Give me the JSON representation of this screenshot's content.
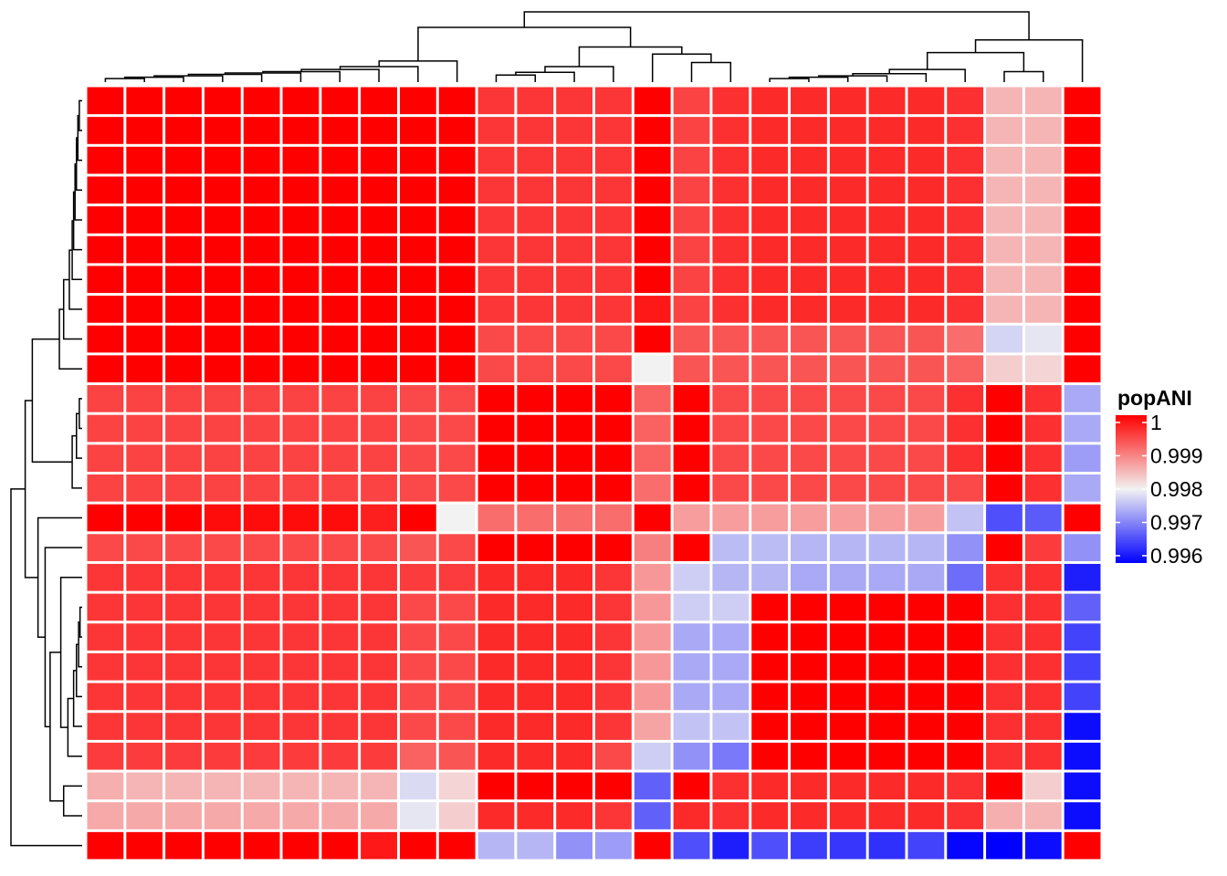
{
  "chart_data": {
    "type": "heatmap",
    "title": "",
    "legend": {
      "title": "popANI",
      "position": "right",
      "range": [
        0.996,
        1.0
      ],
      "ticks": [
        1,
        0.999,
        0.998,
        0.997,
        0.996
      ],
      "tick_labels": [
        "1",
        "0.999",
        "0.998",
        "0.997",
        "0.996"
      ],
      "colors": {
        "low": "#0000ff",
        "mid": "#f2f2f2",
        "high": "#ff0000",
        "mid_value": 0.998
      }
    },
    "row_dendrogram": true,
    "column_dendrogram": true,
    "n_rows": 26,
    "n_cols": 26,
    "values": [
      [
        1.0,
        1.0,
        1.0,
        1.0,
        1.0,
        1.0,
        1.0,
        1.0,
        1.0,
        1.0,
        0.99955,
        0.99955,
        0.99955,
        0.99955,
        1.0,
        0.99945,
        0.9996,
        0.99965,
        0.99965,
        0.99965,
        0.99965,
        0.99965,
        0.9996,
        0.9985,
        0.9985,
        1.0
      ],
      [
        1.0,
        1.0,
        1.0,
        1.0,
        1.0,
        1.0,
        1.0,
        1.0,
        1.0,
        1.0,
        0.99955,
        0.99955,
        0.99955,
        0.99955,
        1.0,
        0.99945,
        0.9996,
        0.99965,
        0.99965,
        0.99965,
        0.99965,
        0.99965,
        0.9996,
        0.9985,
        0.9985,
        1.0
      ],
      [
        1.0,
        1.0,
        1.0,
        1.0,
        1.0,
        1.0,
        1.0,
        1.0,
        1.0,
        1.0,
        0.99955,
        0.99955,
        0.99955,
        0.99955,
        1.0,
        0.99945,
        0.9996,
        0.99965,
        0.99965,
        0.99965,
        0.99965,
        0.99965,
        0.9996,
        0.9985,
        0.9985,
        1.0
      ],
      [
        1.0,
        1.0,
        1.0,
        1.0,
        1.0,
        1.0,
        1.0,
        1.0,
        1.0,
        1.0,
        0.99955,
        0.99955,
        0.99955,
        0.99955,
        1.0,
        0.99945,
        0.9996,
        0.99965,
        0.99965,
        0.99965,
        0.99965,
        0.99965,
        0.9996,
        0.9985,
        0.9985,
        1.0
      ],
      [
        1.0,
        1.0,
        1.0,
        1.0,
        1.0,
        1.0,
        1.0,
        1.0,
        1.0,
        1.0,
        0.99955,
        0.99955,
        0.99955,
        0.99955,
        1.0,
        0.99945,
        0.9996,
        0.99965,
        0.99965,
        0.99965,
        0.99965,
        0.99965,
        0.9996,
        0.9985,
        0.9985,
        1.0
      ],
      [
        1.0,
        1.0,
        1.0,
        1.0,
        1.0,
        1.0,
        1.0,
        1.0,
        1.0,
        1.0,
        0.99955,
        0.99955,
        0.99955,
        0.99955,
        1.0,
        0.99945,
        0.9996,
        0.99965,
        0.99965,
        0.99965,
        0.99965,
        0.99965,
        0.9996,
        0.9985,
        0.9985,
        1.0
      ],
      [
        1.0,
        1.0,
        1.0,
        1.0,
        1.0,
        1.0,
        1.0,
        1.0,
        1.0,
        1.0,
        0.99955,
        0.99955,
        0.99955,
        0.99955,
        1.0,
        0.99945,
        0.9996,
        0.99965,
        0.99965,
        0.99965,
        0.99965,
        0.99965,
        0.9996,
        0.9985,
        0.9985,
        1.0
      ],
      [
        1.0,
        1.0,
        1.0,
        1.0,
        1.0,
        1.0,
        1.0,
        1.0,
        1.0,
        1.0,
        0.99955,
        0.99955,
        0.99955,
        0.99955,
        0.9998,
        0.99945,
        0.9996,
        0.99965,
        0.99965,
        0.99965,
        0.99965,
        0.99965,
        0.9996,
        0.9985,
        0.9985,
        1.0
      ],
      [
        1.0,
        1.0,
        1.0,
        1.0,
        1.0,
        1.0,
        1.0,
        1.0,
        1.0,
        1.0,
        0.9994,
        0.9994,
        0.9994,
        0.9994,
        1.0,
        0.9993,
        0.9993,
        0.9993,
        0.9993,
        0.9993,
        0.9993,
        0.9993,
        0.9991,
        0.99775,
        0.9979,
        1.0
      ],
      [
        1.0,
        1.0,
        1.0,
        1.0,
        1.0,
        1.0,
        1.0,
        1.0,
        1.0,
        1.0,
        0.9994,
        0.9994,
        0.9994,
        0.9994,
        0.998,
        0.9993,
        0.9993,
        0.9993,
        0.9993,
        0.9993,
        0.9993,
        0.9993,
        0.9992,
        0.9983,
        0.99825,
        1.0
      ],
      [
        0.99945,
        0.99945,
        0.99945,
        0.99945,
        0.99945,
        0.99945,
        0.99945,
        0.99945,
        0.9994,
        0.9994,
        1.0,
        1.0,
        1.0,
        1.0,
        0.9992,
        1.0,
        0.9994,
        0.9994,
        0.9994,
        0.9994,
        0.9994,
        0.9994,
        0.9996,
        1.0,
        0.9996,
        0.9974
      ],
      [
        0.99945,
        0.99945,
        0.99945,
        0.99945,
        0.99945,
        0.99945,
        0.99945,
        0.99945,
        0.9994,
        0.9994,
        1.0,
        1.0,
        1.0,
        1.0,
        0.9992,
        1.0,
        0.9994,
        0.9994,
        0.9994,
        0.9994,
        0.9994,
        0.9994,
        0.9996,
        1.0,
        0.9996,
        0.9974
      ],
      [
        0.99945,
        0.99945,
        0.99945,
        0.99945,
        0.99945,
        0.99945,
        0.99945,
        0.99945,
        0.9994,
        0.9994,
        1.0,
        1.0,
        1.0,
        1.0,
        0.9992,
        1.0,
        0.9994,
        0.9994,
        0.9994,
        0.9994,
        0.9994,
        0.9994,
        0.9996,
        1.0,
        0.9996,
        0.9973
      ],
      [
        0.99945,
        0.99945,
        0.99945,
        0.99945,
        0.99945,
        0.99945,
        0.99945,
        0.99945,
        0.9994,
        0.9994,
        1.0,
        1.0,
        1.0,
        1.0,
        0.9991,
        1.0,
        0.9994,
        0.9994,
        0.9994,
        0.9994,
        0.9994,
        0.9994,
        0.9994,
        1.0,
        0.9996,
        0.9974
      ],
      [
        1.0,
        1.0,
        1.0,
        0.9999,
        0.9999,
        0.9999,
        0.9999,
        0.99975,
        1.0,
        0.998,
        0.9991,
        0.9991,
        0.9991,
        0.9991,
        1.0,
        0.9987,
        0.9987,
        0.9987,
        0.9987,
        0.9987,
        0.9987,
        0.9987,
        0.9976,
        0.99665,
        0.99675,
        1.0
      ],
      [
        0.9994,
        0.9994,
        0.9994,
        0.9994,
        0.9994,
        0.9994,
        0.9994,
        0.9994,
        0.9993,
        0.9994,
        1.0,
        1.0,
        1.0,
        1.0,
        0.99895,
        1.0,
        0.99755,
        0.99755,
        0.9975,
        0.9975,
        0.9975,
        0.9975,
        0.9972,
        1.0,
        0.9995,
        0.9972
      ],
      [
        0.99955,
        0.99955,
        0.99955,
        0.99955,
        0.99955,
        0.99955,
        0.99955,
        0.99955,
        0.9995,
        0.9995,
        0.99965,
        0.99965,
        0.99965,
        0.99955,
        0.99875,
        0.9977,
        0.9975,
        0.9975,
        0.9974,
        0.9974,
        0.9974,
        0.9974,
        0.9969,
        0.9996,
        0.9996,
        0.99625
      ],
      [
        0.99955,
        0.99955,
        0.99955,
        0.99955,
        0.99955,
        0.99955,
        0.99955,
        0.99955,
        0.9994,
        0.9994,
        0.99965,
        0.99965,
        0.99965,
        0.99955,
        0.99875,
        0.9977,
        0.9977,
        1.0,
        1.0,
        1.0,
        1.0,
        1.0,
        1.0,
        0.9996,
        0.9996,
        0.9968
      ],
      [
        0.99955,
        0.99955,
        0.99955,
        0.99955,
        0.99955,
        0.99955,
        0.99955,
        0.99955,
        0.9994,
        0.9994,
        0.99965,
        0.99965,
        0.99965,
        0.99955,
        0.99875,
        0.9974,
        0.9974,
        1.0,
        1.0,
        1.0,
        1.0,
        1.0,
        1.0,
        0.9996,
        0.9996,
        0.99655
      ],
      [
        0.99955,
        0.99955,
        0.99955,
        0.99955,
        0.99955,
        0.99955,
        0.99955,
        0.99955,
        0.9994,
        0.9994,
        0.99965,
        0.99965,
        0.99965,
        0.99955,
        0.99875,
        0.9974,
        0.9974,
        1.0,
        1.0,
        1.0,
        1.0,
        1.0,
        1.0,
        0.9996,
        0.9996,
        0.99655
      ],
      [
        0.99955,
        0.99955,
        0.99955,
        0.99955,
        0.99955,
        0.99955,
        0.99955,
        0.99955,
        0.9994,
        0.9994,
        0.99965,
        0.99965,
        0.99965,
        0.99955,
        0.99875,
        0.9974,
        0.9974,
        1.0,
        1.0,
        1.0,
        1.0,
        1.0,
        1.0,
        0.9996,
        0.9996,
        0.99655
      ],
      [
        0.99955,
        0.99955,
        0.99955,
        0.99955,
        0.99955,
        0.99955,
        0.99955,
        0.99955,
        0.9994,
        0.9994,
        0.99965,
        0.99965,
        0.99965,
        0.99955,
        0.99865,
        0.9976,
        0.9976,
        1.0,
        1.0,
        1.0,
        1.0,
        1.0,
        1.0,
        0.9996,
        0.9996,
        0.9961
      ],
      [
        0.9995,
        0.9995,
        0.9995,
        0.9995,
        0.9995,
        0.9995,
        0.9995,
        0.9995,
        0.9992,
        0.9993,
        0.99965,
        0.99965,
        0.99965,
        0.9994,
        0.9977,
        0.9972,
        0.997,
        1.0,
        1.0,
        1.0,
        1.0,
        1.0,
        1.0,
        0.9996,
        0.9996,
        0.9961
      ],
      [
        0.99855,
        0.9985,
        0.9985,
        0.9985,
        0.9985,
        0.9985,
        0.9985,
        0.9985,
        0.9978,
        0.99825,
        1.0,
        1.0,
        1.0,
        1.0,
        0.9968,
        1.0,
        0.9996,
        0.99965,
        0.99965,
        0.99965,
        0.99965,
        0.99965,
        0.9996,
        1.0,
        0.9983,
        0.9961
      ],
      [
        0.9986,
        0.9986,
        0.9986,
        0.9986,
        0.9986,
        0.9986,
        0.9986,
        0.9986,
        0.9979,
        0.9983,
        0.99965,
        0.99965,
        0.99965,
        0.99955,
        0.9968,
        0.99965,
        0.9996,
        0.99965,
        0.99965,
        0.99965,
        0.99965,
        0.99965,
        0.9996,
        0.99855,
        0.9985,
        0.9961
      ],
      [
        1.0,
        1.0,
        1.0,
        1.0,
        1.0,
        1.0,
        1.0,
        0.9998,
        1.0,
        1.0,
        0.9975,
        0.9975,
        0.9972,
        0.9973,
        1.0,
        0.99665,
        0.99625,
        0.99665,
        0.9965,
        0.99645,
        0.9964,
        0.99655,
        0.99605,
        0.996,
        0.9961,
        1.0
      ]
    ]
  }
}
